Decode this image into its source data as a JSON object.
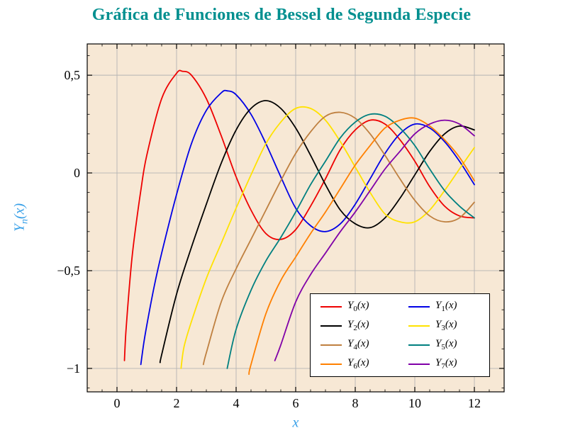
{
  "title": {
    "text": "Gráfica de Funciones de Bessel de Segunda Especie",
    "color": "#008f8f"
  },
  "axes": {
    "xlabel": "x",
    "ylabel": {
      "main": "Y",
      "sub": "n",
      "suffix": "(x)"
    },
    "label_color": "#38a0e8"
  },
  "chart_data": {
    "type": "line",
    "title": "Gráfica de Funciones de Bessel de Segunda Especie",
    "xlabel": "x",
    "ylabel": "Y_n(x)",
    "xlim": [
      -1.0,
      13.0
    ],
    "ylim": [
      -1.12,
      0.66
    ],
    "xticks": {
      "values": [
        0,
        2,
        4,
        6,
        8,
        10,
        12
      ],
      "labels": [
        "0",
        "2",
        "4",
        "6",
        "8",
        "10",
        "12"
      ]
    },
    "yticks": {
      "values": [
        -1,
        -0.5,
        0,
        0.5
      ],
      "labels": [
        "−1",
        "−0,5",
        "0",
        "0,5"
      ]
    },
    "minor": {
      "x_step": 0.5,
      "y_step": 0.1
    },
    "grid": true,
    "colors": {
      "plot_bg": "#f7e8d5",
      "grid": "#b4b4b4",
      "frame": "#000000"
    },
    "legend": {
      "position": "bottom-right",
      "columns": 2
    },
    "series": [
      {
        "id": "Y0",
        "label": {
          "pre": "Y",
          "sub": "0",
          "post": "(x)"
        },
        "color": "#ee0000",
        "points": [
          [
            0.25,
            -0.96
          ],
          [
            0.3,
            -0.81
          ],
          [
            0.4,
            -0.61
          ],
          [
            0.5,
            -0.44
          ],
          [
            0.6,
            -0.31
          ],
          [
            0.8,
            -0.09
          ],
          [
            1,
            0.09
          ],
          [
            1.5,
            0.38
          ],
          [
            2,
            0.51
          ],
          [
            2.2,
            0.52
          ],
          [
            2.5,
            0.5
          ],
          [
            3,
            0.38
          ],
          [
            3.5,
            0.19
          ],
          [
            4,
            -0.02
          ],
          [
            4.5,
            -0.19
          ],
          [
            5,
            -0.31
          ],
          [
            5.5,
            -0.34
          ],
          [
            6,
            -0.29
          ],
          [
            6.5,
            -0.17
          ],
          [
            7,
            -0.03
          ],
          [
            7.5,
            0.12
          ],
          [
            8,
            0.22
          ],
          [
            8.5,
            0.27
          ],
          [
            9,
            0.25
          ],
          [
            9.5,
            0.17
          ],
          [
            10,
            0.06
          ],
          [
            10.5,
            -0.07
          ],
          [
            11,
            -0.17
          ],
          [
            11.5,
            -0.22
          ],
          [
            12,
            -0.23
          ]
        ]
      },
      {
        "id": "Y1",
        "label": {
          "pre": "Y",
          "sub": "1",
          "post": "(x)"
        },
        "color": "#0000e6",
        "points": [
          [
            0.8,
            -0.98
          ],
          [
            0.9,
            -0.87
          ],
          [
            1,
            -0.78
          ],
          [
            1.25,
            -0.58
          ],
          [
            1.5,
            -0.41
          ],
          [
            2,
            -0.11
          ],
          [
            2.5,
            0.15
          ],
          [
            3,
            0.32
          ],
          [
            3.5,
            0.41
          ],
          [
            3.7,
            0.42
          ],
          [
            4,
            0.4
          ],
          [
            4.5,
            0.3
          ],
          [
            5,
            0.15
          ],
          [
            5.5,
            -0.02
          ],
          [
            6,
            -0.18
          ],
          [
            6.5,
            -0.27
          ],
          [
            7,
            -0.3
          ],
          [
            7.5,
            -0.26
          ],
          [
            8,
            -0.16
          ],
          [
            8.5,
            -0.03
          ],
          [
            9,
            0.1
          ],
          [
            9.5,
            0.2
          ],
          [
            10,
            0.25
          ],
          [
            10.5,
            0.23
          ],
          [
            11,
            0.16
          ],
          [
            11.5,
            0.06
          ],
          [
            12,
            -0.06
          ]
        ]
      },
      {
        "id": "Y2",
        "label": {
          "pre": "Y",
          "sub": "2",
          "post": "(x)"
        },
        "color": "#000000",
        "points": [
          [
            1.45,
            -0.97
          ],
          [
            1.5,
            -0.93
          ],
          [
            2,
            -0.62
          ],
          [
            2.5,
            -0.38
          ],
          [
            3,
            -0.16
          ],
          [
            3.5,
            0.05
          ],
          [
            4,
            0.22
          ],
          [
            4.5,
            0.33
          ],
          [
            5,
            0.37
          ],
          [
            5.5,
            0.33
          ],
          [
            6,
            0.23
          ],
          [
            6.5,
            0.09
          ],
          [
            7,
            -0.06
          ],
          [
            7.5,
            -0.19
          ],
          [
            8,
            -0.26
          ],
          [
            8.5,
            -0.28
          ],
          [
            9,
            -0.23
          ],
          [
            9.5,
            -0.13
          ],
          [
            10,
            -0.01
          ],
          [
            10.5,
            0.11
          ],
          [
            11,
            0.2
          ],
          [
            11.5,
            0.24
          ],
          [
            12,
            0.22
          ]
        ]
      },
      {
        "id": "Y3",
        "label": {
          "pre": "Y",
          "sub": "3",
          "post": "(x)"
        },
        "color": "#ffe200",
        "points": [
          [
            2.15,
            -1.0
          ],
          [
            2.25,
            -0.89
          ],
          [
            2.5,
            -0.76
          ],
          [
            3,
            -0.54
          ],
          [
            3.5,
            -0.36
          ],
          [
            4,
            -0.18
          ],
          [
            4.5,
            -0.01
          ],
          [
            5,
            0.15
          ],
          [
            5.5,
            0.26
          ],
          [
            6,
            0.33
          ],
          [
            6.5,
            0.33
          ],
          [
            7,
            0.27
          ],
          [
            7.5,
            0.16
          ],
          [
            8,
            0.03
          ],
          [
            8.5,
            -0.1
          ],
          [
            9,
            -0.21
          ],
          [
            9.5,
            -0.25
          ],
          [
            10,
            -0.25
          ],
          [
            10.5,
            -0.19
          ],
          [
            11,
            -0.09
          ],
          [
            11.5,
            0.02
          ],
          [
            12,
            0.13
          ]
        ]
      },
      {
        "id": "Y4",
        "label": {
          "pre": "Y",
          "sub": "4",
          "post": "(x)"
        },
        "color": "#bf8040",
        "points": [
          [
            2.9,
            -0.98
          ],
          [
            3,
            -0.92
          ],
          [
            3.5,
            -0.66
          ],
          [
            4,
            -0.49
          ],
          [
            4.5,
            -0.34
          ],
          [
            5,
            -0.19
          ],
          [
            5.5,
            -0.04
          ],
          [
            6,
            0.1
          ],
          [
            6.5,
            0.21
          ],
          [
            7,
            0.29
          ],
          [
            7.5,
            0.31
          ],
          [
            8,
            0.28
          ],
          [
            8.5,
            0.2
          ],
          [
            9,
            0.09
          ],
          [
            9.5,
            -0.03
          ],
          [
            10,
            -0.14
          ],
          [
            10.5,
            -0.22
          ],
          [
            11,
            -0.25
          ],
          [
            11.5,
            -0.23
          ],
          [
            12,
            -0.15
          ]
        ]
      },
      {
        "id": "Y5",
        "label": {
          "pre": "Y",
          "sub": "5",
          "post": "(x)"
        },
        "color": "#008080",
        "points": [
          [
            3.7,
            -1.0
          ],
          [
            4,
            -0.8
          ],
          [
            4.5,
            -0.6
          ],
          [
            5,
            -0.45
          ],
          [
            5.5,
            -0.33
          ],
          [
            6,
            -0.2
          ],
          [
            6.5,
            -0.06
          ],
          [
            7,
            0.06
          ],
          [
            7.5,
            0.18
          ],
          [
            8,
            0.26
          ],
          [
            8.5,
            0.3
          ],
          [
            9,
            0.29
          ],
          [
            9.5,
            0.23
          ],
          [
            10,
            0.14
          ],
          [
            10.5,
            0.02
          ],
          [
            11,
            -0.09
          ],
          [
            11.5,
            -0.17
          ],
          [
            12,
            -0.23
          ]
        ]
      },
      {
        "id": "Y6",
        "label": {
          "pre": "Y",
          "sub": "6",
          "post": "(x)"
        },
        "color": "#ff8000",
        "points": [
          [
            4.43,
            -1.03
          ],
          [
            4.5,
            -0.98
          ],
          [
            5,
            -0.72
          ],
          [
            5.5,
            -0.55
          ],
          [
            6,
            -0.43
          ],
          [
            6.5,
            -0.31
          ],
          [
            7,
            -0.2
          ],
          [
            7.5,
            -0.08
          ],
          [
            8,
            0.04
          ],
          [
            8.5,
            0.14
          ],
          [
            9,
            0.23
          ],
          [
            9.5,
            0.27
          ],
          [
            10,
            0.28
          ],
          [
            10.5,
            0.24
          ],
          [
            11,
            0.17
          ],
          [
            11.5,
            0.08
          ],
          [
            12,
            -0.04
          ]
        ]
      },
      {
        "id": "Y7",
        "label": {
          "pre": "Y",
          "sub": "7",
          "post": "(x)"
        },
        "color": "#8000a8",
        "points": [
          [
            5.3,
            -0.96
          ],
          [
            5.5,
            -0.88
          ],
          [
            6,
            -0.66
          ],
          [
            6.5,
            -0.52
          ],
          [
            7,
            -0.41
          ],
          [
            7.5,
            -0.3
          ],
          [
            8,
            -0.2
          ],
          [
            8.5,
            -0.09
          ],
          [
            9,
            0.02
          ],
          [
            9.5,
            0.11
          ],
          [
            10,
            0.2
          ],
          [
            10.5,
            0.25
          ],
          [
            11,
            0.27
          ],
          [
            11.5,
            0.25
          ],
          [
            12,
            0.19
          ]
        ]
      }
    ]
  }
}
